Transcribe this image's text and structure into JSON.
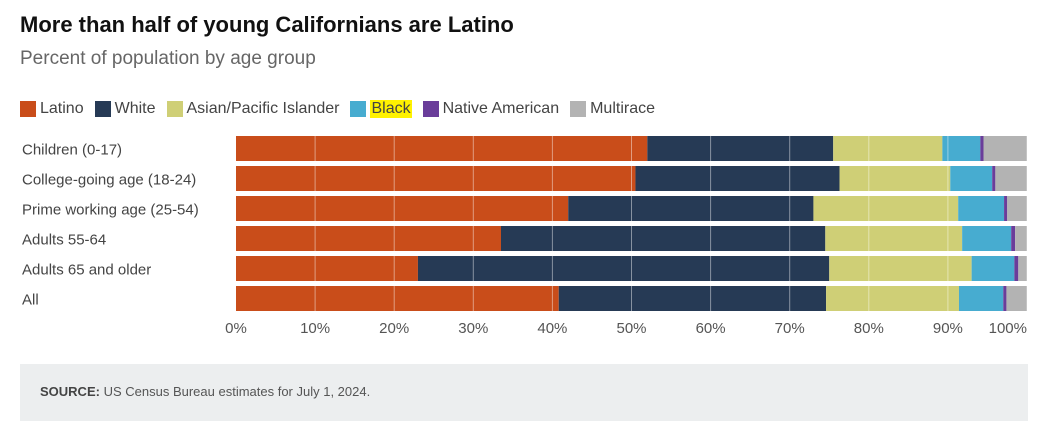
{
  "title": "More than half of young Californians are Latino",
  "subtitle": "Percent of population by age group",
  "source": {
    "label": "SOURCE:",
    "text": "US Census Bureau estimates for July 1, 2024."
  },
  "chart_data": {
    "type": "bar",
    "orientation": "horizontal",
    "stacked": true,
    "title": "More than half of young Californians are Latino",
    "subtitle": "Percent of population by age group",
    "categories": [
      "Children (0-17)",
      "College-going age (18-24)",
      "Prime working age (25-54)",
      "Adults 55-64",
      "Adults 65 and older",
      "All"
    ],
    "series": [
      {
        "name": "Latino",
        "color": "#c94d1a",
        "values": [
          52,
          50.5,
          42,
          33.5,
          23,
          40.8
        ]
      },
      {
        "name": "White",
        "color": "#263a55",
        "values": [
          23.5,
          25.8,
          31,
          41,
          52,
          33.8
        ]
      },
      {
        "name": "Asian/Pacific Islander",
        "color": "#cfcf76",
        "values": [
          13.8,
          14,
          18.3,
          17.3,
          18,
          16.8
        ]
      },
      {
        "name": "Black",
        "color": "#47acd0",
        "values": [
          4.8,
          5.3,
          5.8,
          6.2,
          5.4,
          5.6
        ]
      },
      {
        "name": "Native American",
        "color": "#6a3d9a",
        "values": [
          0.4,
          0.4,
          0.4,
          0.5,
          0.5,
          0.4
        ]
      },
      {
        "name": "Multirace",
        "color": "#b3b3b3",
        "values": [
          5.5,
          4,
          2.5,
          1.5,
          1.1,
          2.6
        ]
      }
    ],
    "xlim": [
      0,
      100
    ],
    "xticks": [
      "0%",
      "10%",
      "20%",
      "30%",
      "40%",
      "50%",
      "60%",
      "70%",
      "80%",
      "90%",
      "100%"
    ],
    "legend_position": "top-left",
    "highlighted_legend_entry": "Black",
    "gridlines": true
  }
}
